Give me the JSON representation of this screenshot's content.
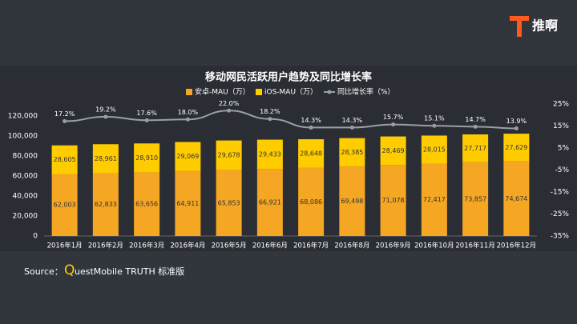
{
  "logo": "推啊",
  "source": {
    "label": "Source：",
    "initial": "Q",
    "rest": "uestMobile TRUTH 标准版"
  },
  "chart_data": {
    "type": "stacked_bar_line",
    "title": "移动网民活跃用户趋势及同比增长率",
    "categories": [
      "2016年1月",
      "2016年2月",
      "2016年3月",
      "2016年4月",
      "2016年5月",
      "2016年6月",
      "2016年7月",
      "2016年8月",
      "2016年9月",
      "2016年10月",
      "2016年11月",
      "2016年12月"
    ],
    "series": [
      {
        "name": "安卓-MAU（万）",
        "color": "#f5a623",
        "kind": "bar",
        "values": [
          62003,
          62833,
          63656,
          64911,
          65853,
          66921,
          68086,
          69498,
          71078,
          72417,
          73857,
          74674
        ],
        "value_labels": [
          "62,003",
          "62,833",
          "63,656",
          "64,911",
          "65,853",
          "66,921",
          "68,086",
          "69,498",
          "71,078",
          "72,417",
          "73,857",
          "74,674"
        ]
      },
      {
        "name": "iOS-MAU（万）",
        "color": "#ffcc00",
        "kind": "bar",
        "values": [
          28605,
          28961,
          28910,
          29069,
          29678,
          29433,
          28648,
          28385,
          28469,
          28015,
          27717,
          27629
        ],
        "value_labels": [
          "28,605",
          "28,961",
          "28,910",
          "29,069",
          "29,678",
          "29,433",
          "28,648",
          "28,385",
          "28,469",
          "28,015",
          "27,717",
          "27,629"
        ]
      },
      {
        "name": "同比增长率（%）",
        "color": "#9a9ea6",
        "kind": "line",
        "axis": "y2",
        "values": [
          17.2,
          19.2,
          17.6,
          18.0,
          22.0,
          18.2,
          14.3,
          14.3,
          15.7,
          15.1,
          14.7,
          13.9
        ],
        "value_labels": [
          "17.2%",
          "19.2%",
          "17.6%",
          "18.0%",
          "22.0%",
          "18.2%",
          "14.3%",
          "14.3%",
          "15.7%",
          "15.1%",
          "14.7%",
          "13.9%"
        ]
      }
    ],
    "ylim": [
      0,
      120000
    ],
    "yticks": [
      0,
      {
        "value": 20000,
        "label": "20,000"
      },
      {
        "value": 40000,
        "label": "40,000"
      },
      {
        "value": 60000,
        "label": "60,000"
      },
      {
        "value": 80000,
        "label": "80,000"
      },
      {
        "value": 100000,
        "label": "100,000"
      },
      {
        "value": 120000,
        "label": "120,000"
      }
    ],
    "y2lim": [
      -35,
      25
    ],
    "y2ticks": [
      {
        "value": -35,
        "label": "-35%"
      },
      {
        "value": -25,
        "label": "-25%"
      },
      {
        "value": -15,
        "label": "-15%"
      },
      {
        "value": -5,
        "label": "-5%"
      },
      {
        "value": 5,
        "label": "5%"
      },
      {
        "value": 15,
        "label": "15%"
      },
      {
        "value": 25,
        "label": "25%"
      }
    ]
  }
}
